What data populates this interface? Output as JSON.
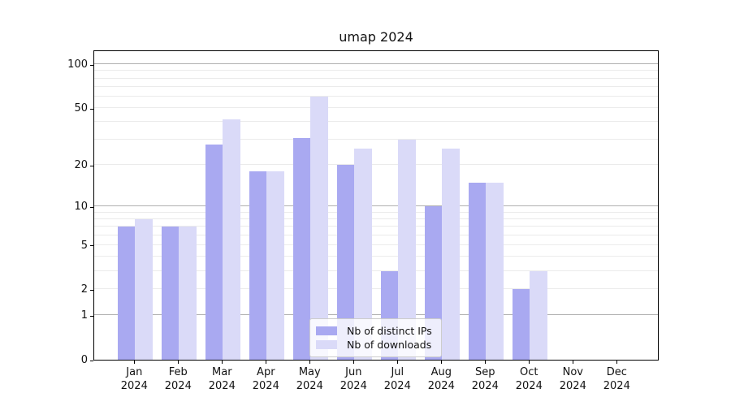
{
  "title": "umap 2024",
  "colors": {
    "distinct_ips": "#a9a9f1",
    "downloads": "#dadaf8",
    "grid_major": "#b0b0b0",
    "grid_minor": "#ebebeb",
    "axis": "#000000",
    "legend_border": "#cccccc"
  },
  "legend": {
    "items": [
      {
        "label": "Nb of distinct IPs",
        "color_key": "distinct_ips"
      },
      {
        "label": "Nb of downloads",
        "color_key": "downloads"
      }
    ]
  },
  "y_axis": {
    "tick_values": [
      0,
      1,
      2,
      5,
      10,
      20,
      50,
      100
    ],
    "tick_labels": [
      "0",
      "1",
      "2",
      "5",
      "10",
      "20",
      "50",
      "100"
    ]
  },
  "x_axis": {
    "months": [
      "Jan",
      "Feb",
      "Mar",
      "Apr",
      "May",
      "Jun",
      "Jul",
      "Aug",
      "Sep",
      "Oct",
      "Nov",
      "Dec"
    ],
    "year": "2024"
  },
  "chart_data": {
    "type": "bar",
    "title": "umap 2024",
    "categories": [
      "Jan 2024",
      "Feb 2024",
      "Mar 2024",
      "Apr 2024",
      "May 2024",
      "Jun 2024",
      "Jul 2024",
      "Aug 2024",
      "Sep 2024",
      "Oct 2024",
      "Nov 2024",
      "Dec 2024"
    ],
    "series": [
      {
        "name": "Nb of distinct IPs",
        "color": "#a9a9f1",
        "values": [
          7,
          7,
          28,
          18,
          31,
          20,
          3,
          10,
          15,
          2,
          0,
          0
        ]
      },
      {
        "name": "Nb of downloads",
        "color": "#dadaf8",
        "values": [
          8,
          7,
          42,
          18,
          60,
          26,
          30,
          26,
          15,
          3,
          0,
          0
        ]
      }
    ],
    "xlabel": "",
    "ylabel": "",
    "scale": "log1p",
    "ylim": [
      0,
      126
    ],
    "yticks": [
      0,
      1,
      2,
      5,
      10,
      20,
      50,
      100
    ],
    "grid": "both",
    "legend_position": "lower-center"
  }
}
